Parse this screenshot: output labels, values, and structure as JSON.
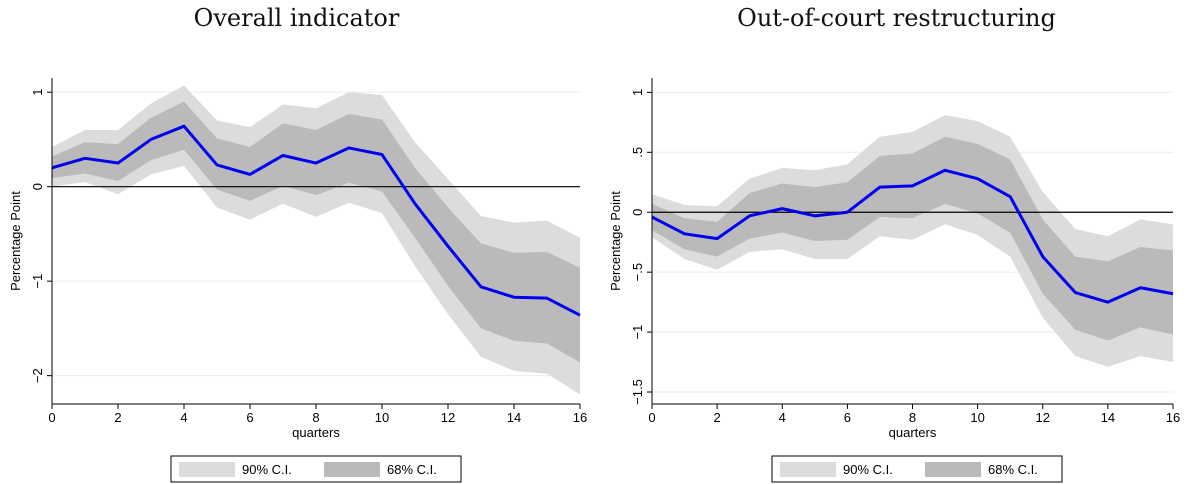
{
  "chart_data": [
    {
      "type": "line",
      "title": "Overall indicator",
      "xlabel": "quarters",
      "ylabel": "Percentage Point",
      "xlim": [
        0,
        16
      ],
      "ylim": [
        -2.3,
        1.15
      ],
      "xticks": [
        0,
        2,
        4,
        6,
        8,
        10,
        12,
        14,
        16
      ],
      "yticks": [
        -2,
        -1,
        0,
        1
      ],
      "ytick_labels": [
        "−2",
        "−1",
        "0",
        "1"
      ],
      "grid": true,
      "x": [
        0,
        1,
        2,
        3,
        4,
        5,
        6,
        7,
        8,
        9,
        10,
        11,
        12,
        13,
        14,
        15,
        16
      ],
      "series": [
        {
          "values": [
            0.2,
            0.3,
            0.25,
            0.5,
            0.64,
            0.23,
            0.13,
            0.33,
            0.25,
            0.41,
            0.34,
            -0.18,
            -0.63,
            -1.06,
            -1.17,
            -1.18,
            -1.36
          ]
        }
      ],
      "bands": [
        {
          "name": "90% C.I.",
          "color": "#dcdcdc",
          "upper": [
            0.42,
            0.6,
            0.6,
            0.88,
            1.07,
            0.7,
            0.63,
            0.87,
            0.83,
            1.0,
            0.97,
            0.47,
            0.08,
            -0.31,
            -0.38,
            -0.36,
            -0.54
          ],
          "lower": [
            0.0,
            0.05,
            -0.08,
            0.13,
            0.22,
            -0.22,
            -0.35,
            -0.18,
            -0.32,
            -0.17,
            -0.28,
            -0.84,
            -1.35,
            -1.8,
            -1.95,
            -1.98,
            -2.2
          ]
        },
        {
          "name": "68% C.I.",
          "color": "#bababa",
          "upper": [
            0.32,
            0.47,
            0.45,
            0.73,
            0.9,
            0.51,
            0.42,
            0.67,
            0.6,
            0.77,
            0.71,
            0.2,
            -0.22,
            -0.6,
            -0.7,
            -0.69,
            -0.86
          ],
          "lower": [
            0.09,
            0.14,
            0.06,
            0.28,
            0.39,
            -0.03,
            -0.15,
            0.01,
            -0.09,
            0.04,
            -0.05,
            -0.54,
            -1.05,
            -1.5,
            -1.63,
            -1.66,
            -1.86
          ]
        }
      ],
      "reference_line": 0,
      "line_color": "#0000ee",
      "legend": {
        "position": "bottom",
        "entries": [
          "90% C.I.",
          "68% C.I."
        ]
      }
    },
    {
      "type": "line",
      "title": "Out-of-court restructuring",
      "xlabel": "quarters",
      "ylabel": "Percentage Point",
      "xlim": [
        0,
        16
      ],
      "ylim": [
        -1.6,
        1.12
      ],
      "xticks": [
        0,
        2,
        4,
        6,
        8,
        10,
        12,
        14,
        16
      ],
      "yticks": [
        -1.5,
        -1,
        -0.5,
        0,
        0.5,
        1
      ],
      "ytick_labels": [
        "−1.5",
        "−1",
        "−.5",
        "0",
        ".5",
        "1"
      ],
      "grid": true,
      "x": [
        0,
        1,
        2,
        3,
        4,
        5,
        6,
        7,
        8,
        9,
        10,
        11,
        12,
        13,
        14,
        15,
        16
      ],
      "series": [
        {
          "values": [
            -0.04,
            -0.18,
            -0.22,
            -0.03,
            0.03,
            -0.03,
            0.0,
            0.21,
            0.22,
            0.35,
            0.28,
            0.13,
            -0.37,
            -0.67,
            -0.75,
            -0.63,
            -0.68
          ]
        }
      ],
      "bands": [
        {
          "name": "90% C.I.",
          "color": "#dcdcdc",
          "upper": [
            0.15,
            0.06,
            0.05,
            0.28,
            0.37,
            0.35,
            0.4,
            0.63,
            0.67,
            0.81,
            0.76,
            0.63,
            0.17,
            -0.14,
            -0.2,
            -0.06,
            -0.1
          ],
          "lower": [
            -0.21,
            -0.39,
            -0.48,
            -0.33,
            -0.31,
            -0.39,
            -0.39,
            -0.2,
            -0.23,
            -0.1,
            -0.19,
            -0.37,
            -0.88,
            -1.2,
            -1.29,
            -1.2,
            -1.25
          ]
        },
        {
          "name": "68% C.I.",
          "color": "#bababa",
          "upper": [
            0.07,
            -0.05,
            -0.08,
            0.16,
            0.24,
            0.21,
            0.25,
            0.47,
            0.49,
            0.63,
            0.57,
            0.44,
            -0.06,
            -0.37,
            -0.41,
            -0.29,
            -0.32
          ],
          "lower": [
            -0.15,
            -0.31,
            -0.37,
            -0.22,
            -0.17,
            -0.24,
            -0.23,
            -0.04,
            -0.05,
            0.07,
            -0.01,
            -0.17,
            -0.68,
            -0.98,
            -1.07,
            -0.96,
            -1.02
          ]
        }
      ],
      "reference_line": 0,
      "line_color": "#0000ee",
      "legend": {
        "position": "bottom",
        "entries": [
          "90% C.I.",
          "68% C.I."
        ]
      }
    }
  ]
}
